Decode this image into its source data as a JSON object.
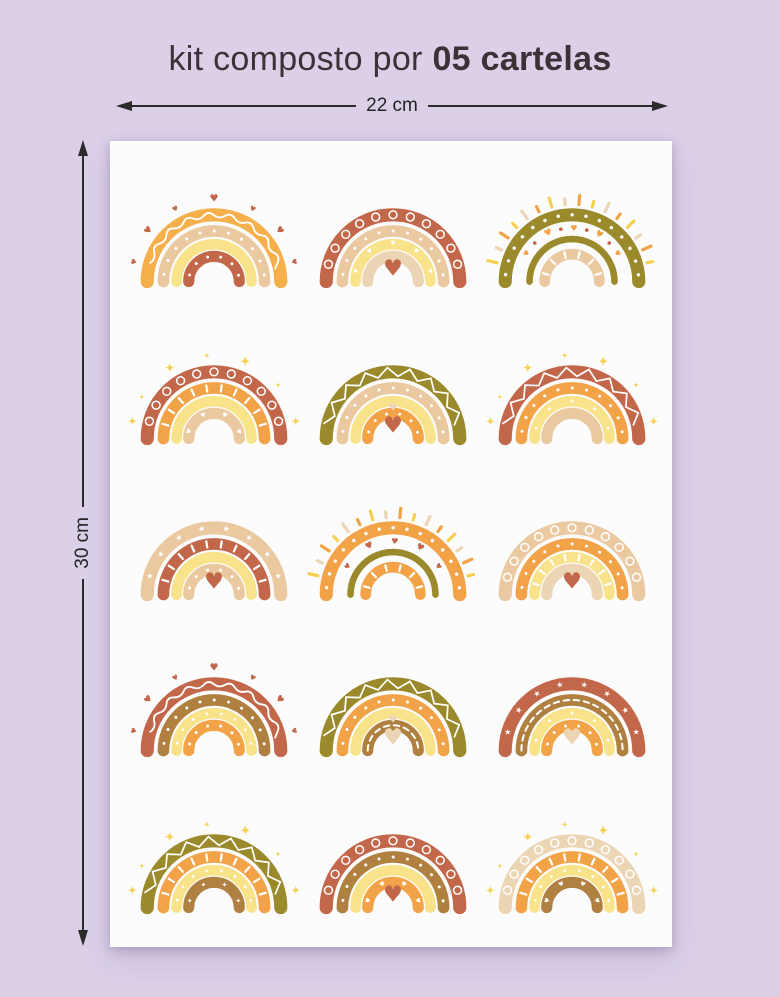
{
  "title": {
    "regular": "kit composto por ",
    "bold": "05 cartelas"
  },
  "dimensions": {
    "width_label": "22 cm",
    "height_label": "30 cm"
  },
  "colors": {
    "background": "#DBD0E8",
    "sheet": "#FCFCFC",
    "title_text": "#3A3236",
    "dimension_text": "#242424",
    "arrow_line": "#2B2B2B",
    "palette": {
      "orange": "#F2A348",
      "amber": "#F5AF4B",
      "terracotta": "#C3674B",
      "beige": "#EAC9A0",
      "sand": "#ECD5B4",
      "paleYellow": "#F9E38A",
      "yellow": "#F6D051",
      "olive": "#9A8A2B",
      "brown": "#B08040",
      "white": "#FFFFFF"
    }
  },
  "sheet": {
    "rows": 5,
    "cols": 3,
    "rainbows": [
      {
        "decor": "hearts",
        "decor_color": "terracotta",
        "heart": null,
        "arcs": [
          {
            "c": "amber",
            "p": "squiggle"
          },
          {
            "c": "beige",
            "p": "dots"
          },
          {
            "c": "paleYellow",
            "p": "plain"
          },
          {
            "c": "terracotta",
            "p": "dots"
          }
        ]
      },
      {
        "decor": "none",
        "heart": "terracotta",
        "arcs": [
          {
            "c": "terracotta",
            "p": "loops"
          },
          {
            "c": "beige",
            "p": "dots"
          },
          {
            "c": "paleYellow",
            "p": "hearts"
          },
          {
            "c": "sand",
            "p": "plain"
          }
        ]
      },
      {
        "decor": "rays",
        "heart": null,
        "midhearts": {
          "color": "orange",
          "dots": "terracotta",
          "r": 53
        },
        "arcs": [
          {
            "c": "olive",
            "p": "dots"
          },
          {
            "c": "olive",
            "p": "plain"
          },
          {
            "c": "beige",
            "p": "ticks"
          }
        ]
      },
      {
        "decor": "sparkles",
        "heart": null,
        "arcs": [
          {
            "c": "terracotta",
            "p": "loops"
          },
          {
            "c": "orange",
            "p": "ticks"
          },
          {
            "c": "paleYellow",
            "p": "plain"
          },
          {
            "c": "beige",
            "p": "hearts"
          }
        ]
      },
      {
        "decor": "none",
        "heart": "terracotta",
        "heart2": "sand",
        "arcs": [
          {
            "c": "olive",
            "p": "zigzag"
          },
          {
            "c": "beige",
            "p": "dots"
          },
          {
            "c": "paleYellow",
            "p": "plain"
          },
          {
            "c": "orange",
            "p": "dots"
          }
        ]
      },
      {
        "decor": "sparkles",
        "heart": null,
        "arcs": [
          {
            "c": "terracotta",
            "p": "zigzag"
          },
          {
            "c": "orange",
            "p": "dots"
          },
          {
            "c": "paleYellow",
            "p": "sparkles"
          },
          {
            "c": "beige",
            "p": "plain"
          }
        ]
      },
      {
        "decor": "none",
        "heart": "terracotta",
        "arcs": [
          {
            "c": "beige",
            "p": "stars"
          },
          {
            "c": "terracotta",
            "p": "ticks"
          },
          {
            "c": "paleYellow",
            "p": "plain"
          },
          {
            "c": "beige",
            "p": "dots"
          }
        ]
      },
      {
        "decor": "rays",
        "heart": null,
        "midhearts": {
          "color": "terracotta",
          "r": 53
        },
        "arcs": [
          {
            "c": "orange",
            "p": "dots"
          },
          {
            "c": "olive",
            "p": "plain"
          },
          {
            "c": "orange",
            "p": "ticks"
          }
        ]
      },
      {
        "decor": "none",
        "heart": "terracotta",
        "arcs": [
          {
            "c": "beige",
            "p": "loops"
          },
          {
            "c": "orange",
            "p": "dots"
          },
          {
            "c": "paleYellow",
            "p": "ticks"
          },
          {
            "c": "sand",
            "p": "plain"
          }
        ]
      },
      {
        "decor": "hearts",
        "decor_color": "terracotta",
        "heart": null,
        "arcs": [
          {
            "c": "terracotta",
            "p": "squiggle"
          },
          {
            "c": "brown",
            "p": "dots"
          },
          {
            "c": "paleYellow",
            "p": "dots"
          },
          {
            "c": "orange",
            "p": "dots"
          }
        ]
      },
      {
        "decor": "none",
        "heart": "sand",
        "heart2": "sand",
        "arcs": [
          {
            "c": "olive",
            "p": "zigzag"
          },
          {
            "c": "orange",
            "p": "dots"
          },
          {
            "c": "paleYellow",
            "p": "plain"
          },
          {
            "c": "brown",
            "p": "dashline"
          }
        ]
      },
      {
        "decor": "none",
        "heart": "sand",
        "arcs": [
          {
            "c": "terracotta",
            "p": "stars"
          },
          {
            "c": "brown",
            "p": "dashline"
          },
          {
            "c": "paleYellow",
            "p": "sparkles"
          },
          {
            "c": "orange",
            "p": "dots"
          }
        ]
      },
      {
        "decor": "sparkles",
        "heart": null,
        "arcs": [
          {
            "c": "olive",
            "p": "zigzag"
          },
          {
            "c": "orange",
            "p": "ticks"
          },
          {
            "c": "paleYellow",
            "p": "dots"
          },
          {
            "c": "brown",
            "p": "sparkles"
          }
        ]
      },
      {
        "decor": "none",
        "heart": "terracotta",
        "arcs": [
          {
            "c": "terracotta",
            "p": "loops"
          },
          {
            "c": "brown",
            "p": "dots"
          },
          {
            "c": "paleYellow",
            "p": "plain"
          },
          {
            "c": "orange",
            "p": "hearts"
          }
        ]
      },
      {
        "decor": "sparkles",
        "heart": null,
        "arcs": [
          {
            "c": "sand",
            "p": "loops"
          },
          {
            "c": "orange",
            "p": "ticks"
          },
          {
            "c": "paleYellow",
            "p": "dots"
          },
          {
            "c": "brown",
            "p": "hearts"
          }
        ]
      }
    ]
  }
}
